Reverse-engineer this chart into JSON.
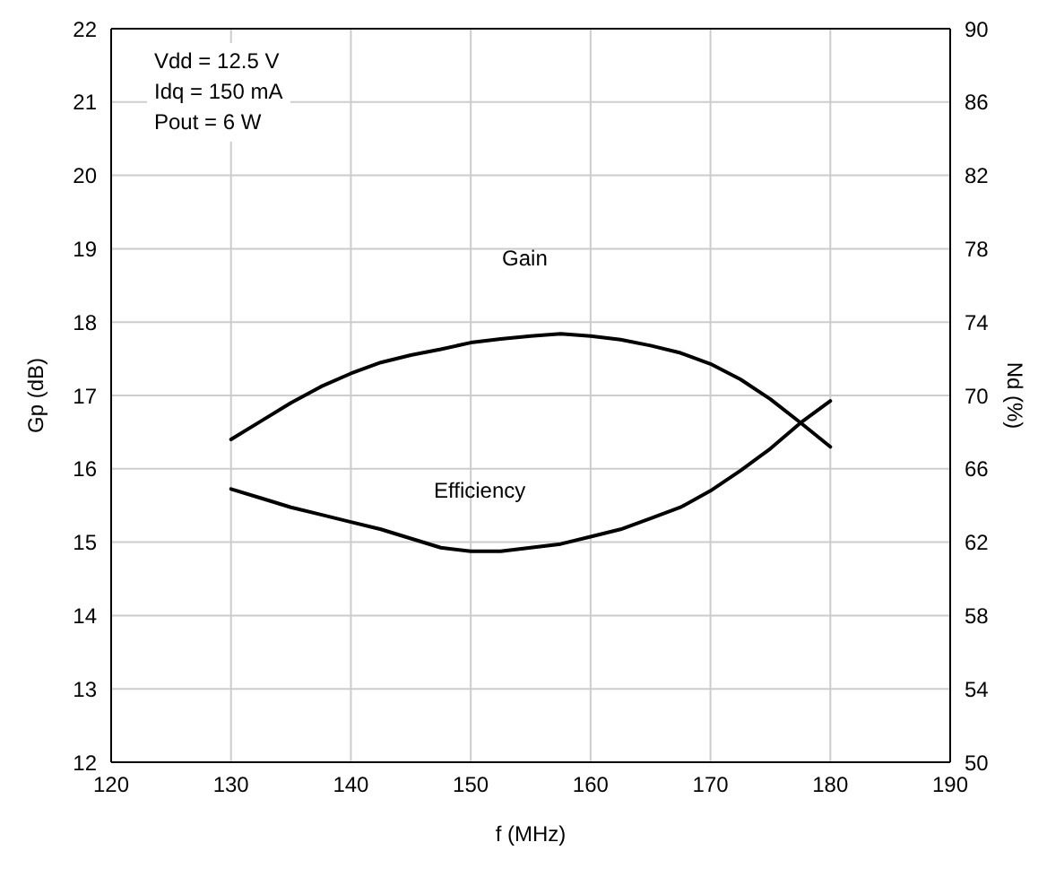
{
  "chart_data": {
    "type": "line",
    "xlabel": "f (MHz)",
    "ylabel": "Gp (dB)",
    "y2label": "Nd (%)",
    "annotations": [
      "Vdd = 12.5 V\nIdq = 150 mA\nPout = 6 W"
    ],
    "x": [
      130,
      132.5,
      135,
      137.5,
      140,
      142.5,
      145,
      147.5,
      150,
      152.5,
      155,
      157.5,
      160,
      162.5,
      165,
      167.5,
      170,
      172.5,
      175,
      177.5,
      180
    ],
    "series": [
      {
        "name": "Gain",
        "color": "#000000",
        "values": [
          16.4,
          16.65,
          16.9,
          17.12,
          17.3,
          17.45,
          17.55,
          17.63,
          17.72,
          17.77,
          17.81,
          17.84,
          17.81,
          17.76,
          17.68,
          17.58,
          17.43,
          17.22,
          16.95,
          16.63,
          16.3
        ]
      },
      {
        "name": "Efficiency",
        "color": "#000000",
        "axis": "y2",
        "values": [
          64.9,
          64.4,
          63.9,
          63.5,
          63.1,
          62.7,
          62.2,
          61.7,
          61.5,
          61.5,
          61.7,
          61.9,
          62.3,
          62.7,
          63.3,
          63.9,
          64.8,
          65.9,
          67.1,
          68.5,
          69.7
        ]
      }
    ],
    "xlim": [
      120,
      190
    ],
    "xticks": [
      120,
      130,
      140,
      150,
      160,
      170,
      180,
      190
    ],
    "ylim": [
      12,
      22
    ],
    "yticks": [
      12,
      13,
      14,
      15,
      16,
      17,
      18,
      19,
      20,
      21,
      22
    ],
    "y2lim": [
      50,
      90
    ],
    "y2ticks": [
      50,
      54,
      58,
      62,
      66,
      70,
      74,
      78,
      82,
      86,
      90
    ],
    "grid": true,
    "legend": false,
    "marker": "none",
    "line_style": "solid"
  }
}
